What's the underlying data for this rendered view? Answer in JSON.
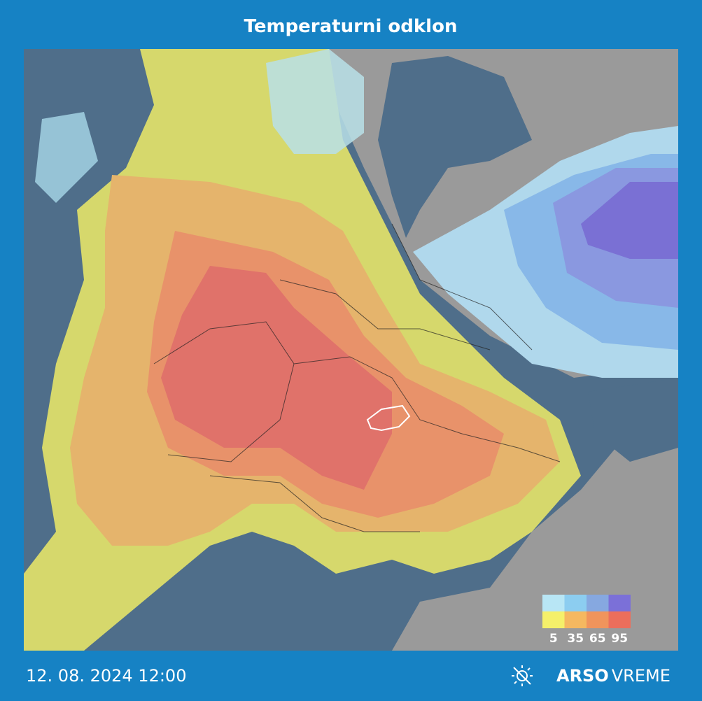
{
  "header": {
    "title": "Temperaturni odklon"
  },
  "legend": {
    "cold_colors": [
      "#b8e6f5",
      "#8ccdf0",
      "#86a8e0",
      "#7b70d8"
    ],
    "warm_colors": [
      "#f5f06a",
      "#f5b860",
      "#f0945c",
      "#ec6e5c"
    ],
    "labels": [
      5,
      35,
      65,
      95
    ]
  },
  "footer": {
    "datetime": "12. 08. 2024 12:00",
    "brand": "ARSO",
    "brand_suffix": "VREME"
  }
}
